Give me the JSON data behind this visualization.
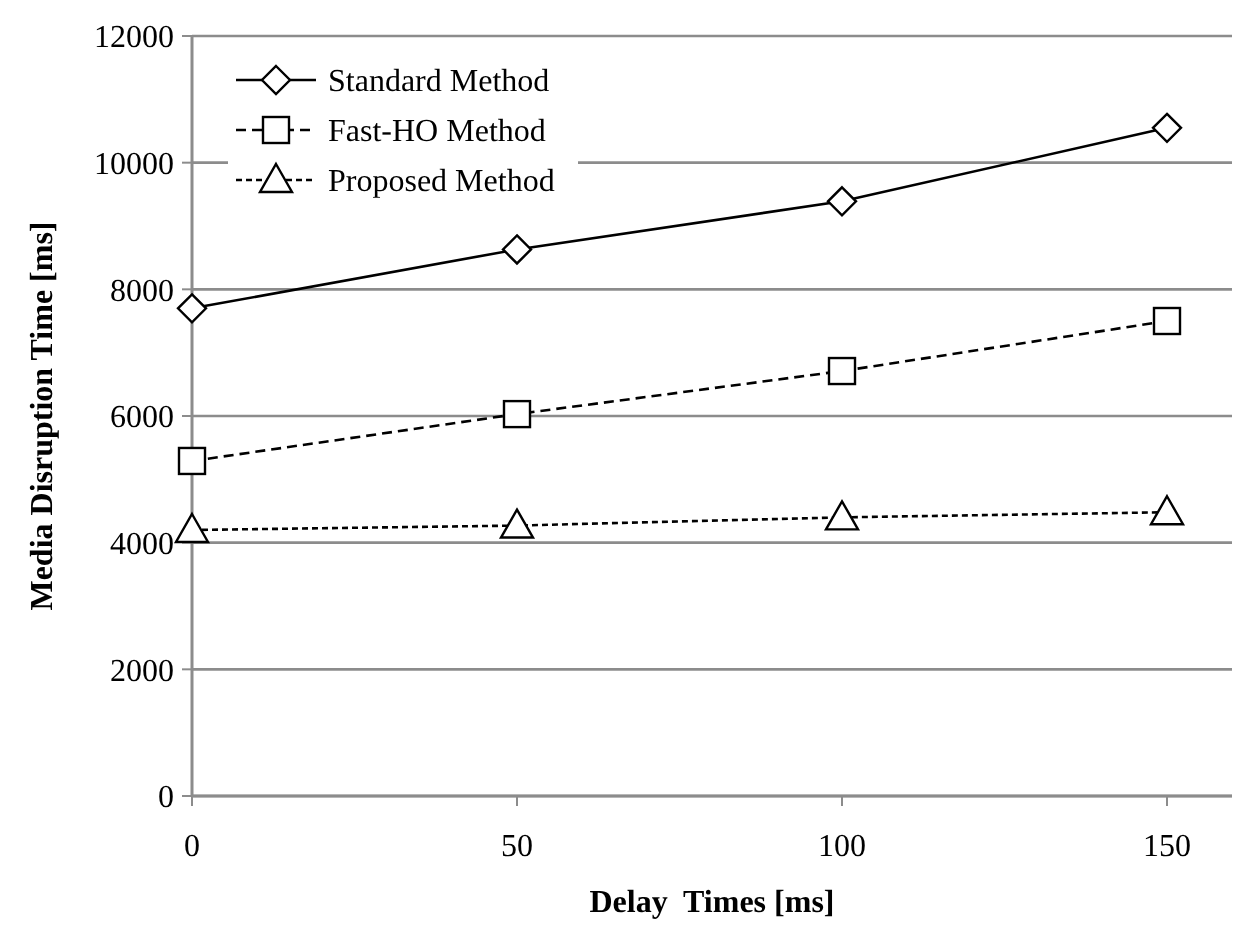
{
  "chart_data": {
    "type": "line",
    "xlabel": "Delay  Times [ms]",
    "ylabel": "Media Disruption Time [ms]",
    "x": [
      0,
      50,
      100,
      150
    ],
    "xlim": [
      0,
      160
    ],
    "xticks": [
      0,
      50,
      100,
      150
    ],
    "ylim": [
      0,
      12000
    ],
    "yticks": [
      0,
      2000,
      4000,
      6000,
      8000,
      10000,
      12000
    ],
    "grid": "y",
    "legend": "top left",
    "series": [
      {
        "name": "Standard Method",
        "color": "#000000",
        "marker": "diamond",
        "line_style": "solid",
        "values": [
          7700,
          8630,
          9390,
          10550
        ]
      },
      {
        "name": "Fast-HO Method",
        "color": "#000000",
        "marker": "square",
        "line_style": "dashed",
        "values": [
          5290,
          6030,
          6710,
          7500
        ]
      },
      {
        "name": "Proposed Method",
        "color": "#000000",
        "marker": "triangle",
        "line_style": "dotted",
        "values": [
          4200,
          4270,
          4400,
          4480
        ]
      }
    ]
  }
}
